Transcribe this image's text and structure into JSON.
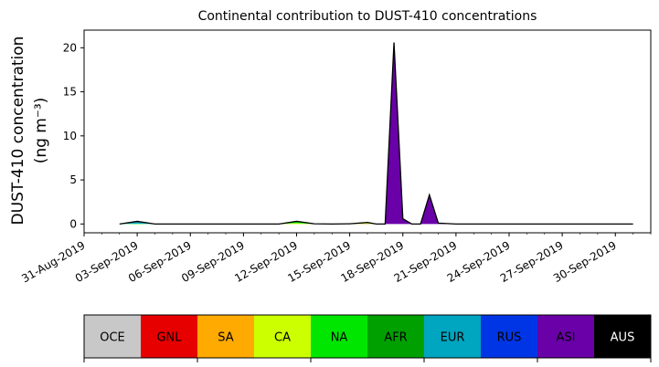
{
  "chart_data": {
    "type": "area",
    "title": "Continental contribution to DUST-410 concentrations",
    "ylabel_line1": "DUST-410 concentration",
    "ylabel_line2": "(ng m⁻³)",
    "ylim": [
      -1,
      22
    ],
    "yticks": [
      0,
      5,
      10,
      15,
      20
    ],
    "xlim": [
      "2019-08-31",
      "2019-10-02"
    ],
    "xticks": [
      "31-Aug-2019",
      "03-Sep-2019",
      "06-Sep-2019",
      "09-Sep-2019",
      "12-Sep-2019",
      "15-Sep-2019",
      "18-Sep-2019",
      "21-Sep-2019",
      "24-Sep-2019",
      "27-Sep-2019",
      "30-Sep-2019"
    ],
    "x": [
      "2019-09-02",
      "2019-09-03",
      "2019-09-04",
      "2019-09-05",
      "2019-09-06",
      "2019-09-07",
      "2019-09-08",
      "2019-09-09",
      "2019-09-10",
      "2019-09-11",
      "2019-09-12",
      "2019-09-13",
      "2019-09-14",
      "2019-09-15",
      "2019-09-16",
      "2019-09-16T12:00",
      "2019-09-17",
      "2019-09-17T12:00",
      "2019-09-18",
      "2019-09-18T12:00",
      "2019-09-19",
      "2019-09-19T12:00",
      "2019-09-20",
      "2019-09-21",
      "2019-09-22",
      "2019-09-23",
      "2019-09-24",
      "2019-09-25",
      "2019-09-26",
      "2019-09-27",
      "2019-09-28",
      "2019-09-29",
      "2019-09-30",
      "2019-10-01"
    ],
    "series": [
      {
        "name": "OCE",
        "color": "#c8c8c8",
        "values": [
          0,
          0,
          0,
          0,
          0,
          0,
          0,
          0,
          0,
          0,
          0,
          0,
          0,
          0,
          0,
          0,
          0,
          0,
          0,
          0,
          0,
          0,
          0,
          0,
          0,
          0,
          0,
          0,
          0,
          0,
          0,
          0,
          0,
          0
        ]
      },
      {
        "name": "GNL",
        "color": "#e60000",
        "values": [
          0,
          0,
          0,
          0,
          0,
          0,
          0,
          0,
          0,
          0,
          0,
          0,
          0,
          0,
          0,
          0,
          0,
          0,
          0,
          0,
          0,
          0,
          0,
          0,
          0,
          0,
          0,
          0,
          0,
          0,
          0,
          0,
          0,
          0
        ]
      },
      {
        "name": "SA",
        "color": "#ffaa00",
        "values": [
          0,
          0,
          0,
          0,
          0,
          0,
          0,
          0,
          0,
          0,
          0,
          0,
          0,
          0,
          0.05,
          0,
          0,
          0,
          0,
          0,
          0,
          0,
          0,
          0,
          0,
          0,
          0,
          0,
          0,
          0,
          0,
          0,
          0,
          0
        ]
      },
      {
        "name": "CA",
        "color": "#ccff00",
        "values": [
          0,
          0,
          0,
          0,
          0,
          0,
          0,
          0,
          0,
          0,
          0.1,
          0,
          0,
          0,
          0.05,
          0,
          0,
          0,
          0,
          0,
          0,
          0,
          0,
          0,
          0,
          0,
          0,
          0,
          0,
          0,
          0,
          0,
          0,
          0
        ]
      },
      {
        "name": "NA",
        "color": "#00e600",
        "values": [
          0,
          0.05,
          0,
          0,
          0,
          0,
          0,
          0,
          0,
          0,
          0.15,
          0.02,
          0,
          0.02,
          0.05,
          0,
          0,
          0,
          0,
          0,
          0,
          0,
          0,
          0,
          0,
          0,
          0,
          0,
          0,
          0,
          0,
          0,
          0,
          0
        ]
      },
      {
        "name": "AFR",
        "color": "#00a000",
        "values": [
          0,
          0,
          0,
          0,
          0,
          0,
          0,
          0,
          0,
          0,
          0.05,
          0,
          0,
          0,
          0.02,
          0,
          0,
          0,
          0,
          0,
          0,
          0,
          0,
          0,
          0,
          0,
          0,
          0,
          0,
          0,
          0,
          0,
          0,
          0
        ]
      },
      {
        "name": "EUR",
        "color": "#00a5c0",
        "values": [
          0,
          0.15,
          0,
          0,
          0,
          0,
          0,
          0,
          0,
          0,
          0,
          0,
          0,
          0,
          0,
          0,
          0,
          0,
          0,
          0,
          0,
          0,
          0,
          0,
          0,
          0,
          0,
          0,
          0,
          0,
          0,
          0,
          0,
          0
        ]
      },
      {
        "name": "RUS",
        "color": "#0035e6",
        "values": [
          0,
          0.05,
          0,
          0,
          0,
          0,
          0,
          0,
          0,
          0,
          0,
          0,
          0,
          0,
          0,
          0,
          0,
          0,
          0,
          0,
          0,
          0,
          0,
          0,
          0,
          0,
          0,
          0,
          0,
          0,
          0,
          0,
          0,
          0
        ]
      },
      {
        "name": "ASI",
        "color": "#6a00a8",
        "values": [
          0,
          0.05,
          0,
          0,
          0,
          0,
          0,
          0,
          0,
          0,
          0,
          0,
          0,
          0,
          0,
          0,
          0,
          20.6,
          0.6,
          0,
          0,
          3.3,
          0.1,
          0,
          0,
          0,
          0,
          0,
          0,
          0,
          0,
          0,
          0,
          0
        ]
      },
      {
        "name": "AUS",
        "color": "#000000",
        "values": [
          0,
          0,
          0,
          0,
          0,
          0,
          0,
          0,
          0,
          0,
          0,
          0,
          0,
          0,
          0,
          0,
          0,
          0,
          0,
          0,
          0,
          0,
          0,
          0,
          0,
          0,
          0,
          0,
          0,
          0,
          0,
          0,
          0,
          0
        ]
      }
    ],
    "total_line_color": "#000000",
    "legend_placement": "bottom colorbar",
    "grid": false
  }
}
